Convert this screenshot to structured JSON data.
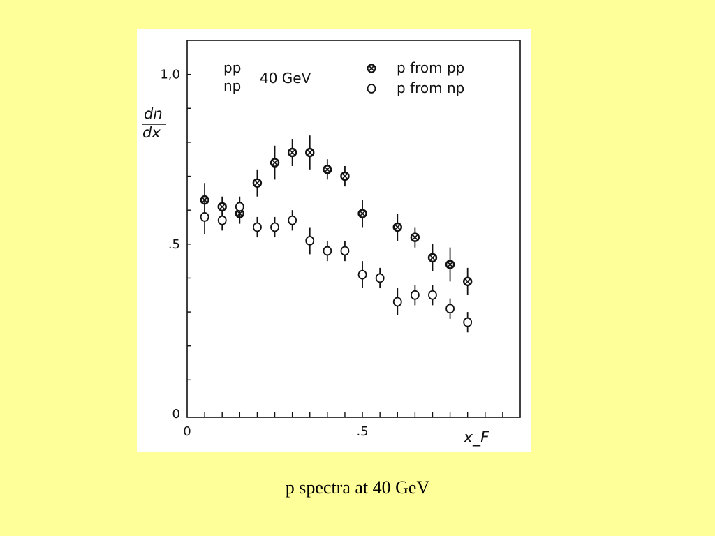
{
  "caption": "p  spectra at 40 GeV",
  "chart_data": {
    "type": "scatter",
    "title": "",
    "xlabel": "x_F",
    "ylabel": "dn/dx",
    "xlim": [
      0,
      0.95
    ],
    "ylim": [
      0,
      1.1
    ],
    "x_ticks": [
      {
        "value": 0,
        "label": "0"
      },
      {
        "value": 0.5,
        "label": ".5"
      }
    ],
    "y_ticks": [
      {
        "value": 0,
        "label": "0"
      },
      {
        "value": 0.5,
        "label": ".5"
      },
      {
        "value": 1.0,
        "label": "1,0"
      }
    ],
    "legend_placement": "top",
    "annotation": {
      "line1": "pp",
      "line2": "np",
      "energy": "40 GeV"
    },
    "series": [
      {
        "name": "p from pp",
        "marker": "crossed-circle",
        "x": [
          0.05,
          0.1,
          0.15,
          0.2,
          0.25,
          0.3,
          0.35,
          0.4,
          0.45,
          0.5,
          0.6,
          0.65,
          0.7,
          0.75,
          0.8
        ],
        "y": [
          0.63,
          0.61,
          0.59,
          0.68,
          0.74,
          0.77,
          0.77,
          0.72,
          0.7,
          0.59,
          0.55,
          0.52,
          0.46,
          0.44,
          0.39
        ],
        "err": [
          0.05,
          0.03,
          0.03,
          0.04,
          0.05,
          0.04,
          0.05,
          0.03,
          0.03,
          0.04,
          0.04,
          0.03,
          0.04,
          0.05,
          0.04
        ]
      },
      {
        "name": "p from np",
        "marker": "open-circle",
        "x": [
          0.05,
          0.1,
          0.15,
          0.2,
          0.25,
          0.3,
          0.35,
          0.4,
          0.45,
          0.5,
          0.55,
          0.6,
          0.65,
          0.7,
          0.75,
          0.8
        ],
        "y": [
          0.58,
          0.57,
          0.61,
          0.55,
          0.55,
          0.57,
          0.51,
          0.48,
          0.48,
          0.41,
          0.4,
          0.33,
          0.35,
          0.35,
          0.31,
          0.27
        ],
        "err": [
          0.05,
          0.03,
          0.03,
          0.03,
          0.03,
          0.03,
          0.04,
          0.03,
          0.03,
          0.04,
          0.03,
          0.04,
          0.03,
          0.03,
          0.03,
          0.03
        ]
      }
    ]
  }
}
